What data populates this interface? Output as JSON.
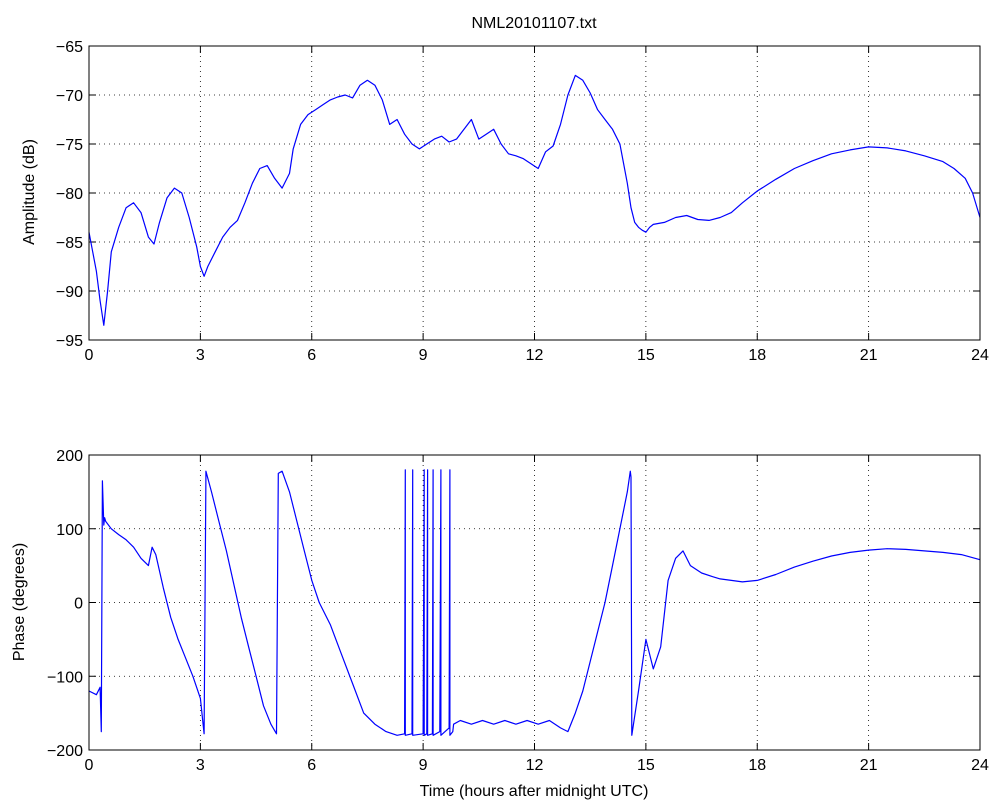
{
  "chart_data": [
    {
      "type": "line",
      "title": "NML20101107.txt",
      "xlabel": "",
      "ylabel": "Amplitude (dB)",
      "xlim": [
        0,
        24
      ],
      "ylim": [
        -95,
        -65
      ],
      "xticks": [
        0,
        3,
        6,
        9,
        12,
        15,
        18,
        21,
        24
      ],
      "yticks": [
        -95,
        -90,
        -85,
        -80,
        -75,
        -70,
        -65
      ],
      "grid": true,
      "color": "#0000ff",
      "series": [
        {
          "x": [
            0,
            0.1,
            0.2,
            0.3,
            0.4,
            0.5,
            0.6,
            0.8,
            1.0,
            1.2,
            1.4,
            1.6,
            1.75,
            1.9,
            2.1,
            2.3,
            2.5,
            2.7,
            2.9,
            3.0,
            3.1,
            3.2,
            3.4,
            3.6,
            3.8,
            4.0,
            4.2,
            4.4,
            4.6,
            4.8,
            5.0,
            5.2,
            5.4,
            5.5,
            5.7,
            5.9,
            6.1,
            6.3,
            6.5,
            6.7,
            6.9,
            7.1,
            7.3,
            7.5,
            7.7,
            7.9,
            8.1,
            8.3,
            8.5,
            8.7,
            8.9,
            9.1,
            9.3,
            9.5,
            9.7,
            9.9,
            10.1,
            10.3,
            10.5,
            10.7,
            10.9,
            11.1,
            11.3,
            11.5,
            11.7,
            11.9,
            12.1,
            12.3,
            12.5,
            12.7,
            12.9,
            13.1,
            13.3,
            13.5,
            13.7,
            13.9,
            14.1,
            14.3,
            14.5,
            14.6,
            14.7,
            14.8,
            14.9,
            15.0,
            15.1,
            15.2,
            15.5,
            15.8,
            16.1,
            16.4,
            16.7,
            17.0,
            17.3,
            17.6,
            18.0,
            18.5,
            19.0,
            19.5,
            20.0,
            20.5,
            21.0,
            21.5,
            22.0,
            22.5,
            23.0,
            23.3,
            23.6,
            23.8,
            24.0
          ],
          "y": [
            -84,
            -86,
            -88,
            -91,
            -93.5,
            -90,
            -86,
            -83.5,
            -81.5,
            -81,
            -82,
            -84.5,
            -85.2,
            -83,
            -80.5,
            -79.5,
            -80,
            -82.5,
            -85.5,
            -87.5,
            -88.5,
            -87.5,
            -86,
            -84.5,
            -83.5,
            -82.8,
            -81,
            -79,
            -77.5,
            -77.2,
            -78.5,
            -79.5,
            -78,
            -75.5,
            -73,
            -72,
            -71.5,
            -71,
            -70.5,
            -70.2,
            -70,
            -70.3,
            -69,
            -68.5,
            -69,
            -70.5,
            -73,
            -72.5,
            -74,
            -75,
            -75.5,
            -75,
            -74.5,
            -74.2,
            -74.8,
            -74.5,
            -73.5,
            -72.5,
            -74.5,
            -74,
            -73.5,
            -75,
            -76,
            -76.2,
            -76.5,
            -77,
            -77.5,
            -75.8,
            -75.2,
            -73,
            -70,
            -68,
            -68.5,
            -69.8,
            -71.5,
            -72.5,
            -73.5,
            -75,
            -79,
            -81.5,
            -83,
            -83.5,
            -83.8,
            -84,
            -83.5,
            -83.2,
            -83,
            -82.5,
            -82.3,
            -82.7,
            -82.8,
            -82.5,
            -82,
            -81,
            -79.8,
            -78.6,
            -77.5,
            -76.7,
            -76,
            -75.6,
            -75.3,
            -75.4,
            -75.7,
            -76.2,
            -76.8,
            -77.5,
            -78.5,
            -80,
            -82.5
          ]
        }
      ]
    },
    {
      "type": "line",
      "title": "",
      "xlabel": "Time (hours after midnight UTC)",
      "ylabel": "Phase (degrees)",
      "xlim": [
        0,
        24
      ],
      "ylim": [
        -200,
        200
      ],
      "xticks": [
        0,
        3,
        6,
        9,
        12,
        15,
        18,
        21,
        24
      ],
      "yticks": [
        -200,
        -100,
        0,
        100,
        200
      ],
      "grid": true,
      "color": "#0000ff",
      "series": [
        {
          "x": [
            0,
            0.2,
            0.3,
            0.33,
            0.36,
            0.4,
            0.42,
            0.45,
            0.6,
            0.8,
            1.0,
            1.2,
            1.4,
            1.6,
            1.7,
            1.8,
            2.0,
            2.2,
            2.4,
            2.6,
            2.8,
            3.0,
            3.1,
            3.15,
            3.15,
            3.3,
            3.5,
            3.7,
            3.9,
            4.1,
            4.3,
            4.5,
            4.7,
            4.9,
            5.05,
            5.1,
            5.2,
            5.4,
            5.6,
            5.8,
            6.0,
            6.2,
            6.5,
            6.8,
            7.1,
            7.4,
            7.7,
            8.0,
            8.3,
            8.5,
            8.52,
            8.52,
            8.7,
            8.72,
            8.72,
            9.0,
            9.03,
            9.03,
            9.1,
            9.12,
            9.12,
            9.25,
            9.27,
            9.27,
            9.45,
            9.48,
            9.48,
            9.7,
            9.72,
            9.72,
            9.8,
            9.82,
            10.0,
            10.3,
            10.6,
            10.9,
            11.2,
            11.5,
            11.8,
            12.1,
            12.4,
            12.7,
            12.9,
            13.1,
            13.3,
            13.5,
            13.7,
            13.9,
            14.1,
            14.3,
            14.5,
            14.58,
            14.6,
            14.62,
            14.8,
            15.0,
            15.2,
            15.4,
            15.6,
            15.8,
            16.0,
            16.2,
            16.5,
            16.8,
            17.0,
            17.3,
            17.6,
            18.0,
            18.5,
            19.0,
            19.5,
            20.0,
            20.5,
            21.0,
            21.5,
            22.0,
            22.5,
            23.0,
            23.5,
            24.0
          ],
          "y": [
            -120,
            -125,
            -115,
            -175,
            165,
            105,
            115,
            110,
            100,
            92,
            85,
            75,
            60,
            50,
            75,
            65,
            20,
            -20,
            -50,
            -75,
            -100,
            -130,
            -178,
            170,
            178,
            150,
            110,
            70,
            25,
            -20,
            -60,
            -100,
            -140,
            -165,
            -178,
            175,
            178,
            150,
            110,
            70,
            30,
            0,
            -30,
            -70,
            -110,
            -150,
            -165,
            -175,
            -180,
            -178,
            180,
            -180,
            -178,
            180,
            -180,
            -178,
            180,
            -180,
            -178,
            180,
            -180,
            -178,
            180,
            -180,
            -175,
            180,
            -180,
            -170,
            180,
            -180,
            -175,
            -165,
            -160,
            -165,
            -160,
            -165,
            -160,
            -165,
            -160,
            -165,
            -160,
            -170,
            -175,
            -150,
            -120,
            -80,
            -40,
            0,
            50,
            100,
            150,
            178,
            170,
            -180,
            -120,
            -50,
            -90,
            -60,
            30,
            60,
            70,
            50,
            40,
            35,
            32,
            30,
            28,
            30,
            38,
            48,
            56,
            63,
            68,
            71,
            73,
            72,
            70,
            68,
            65,
            58
          ]
        }
      ]
    }
  ]
}
